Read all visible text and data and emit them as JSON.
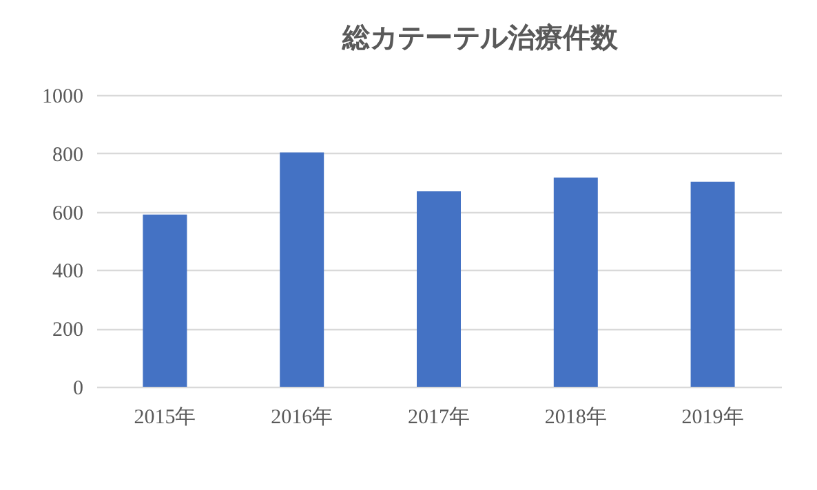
{
  "chart_data": {
    "type": "bar",
    "title": "総カテーテル治療件数",
    "categories": [
      "2015年",
      "2016年",
      "2017年",
      "2018年",
      "2019年"
    ],
    "values": [
      590,
      803,
      670,
      717,
      703
    ],
    "color": "#4472c4",
    "ylim": [
      0,
      1000
    ],
    "yticks": [
      0,
      200,
      400,
      600,
      800,
      1000
    ],
    "grid": "y"
  }
}
